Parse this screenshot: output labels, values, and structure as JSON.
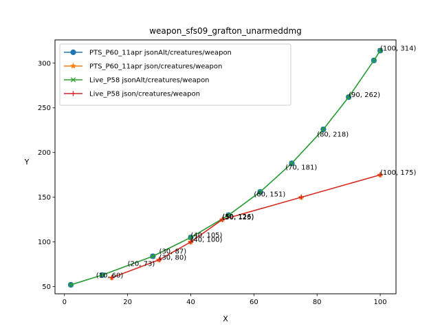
{
  "chart_data": {
    "type": "line",
    "title": "weapon_sfs09_grafton_unarmeddmg",
    "xlabel": "X",
    "ylabel": "Y",
    "xlim": [
      -3,
      105
    ],
    "ylim": [
      42,
      326
    ],
    "xticks": [
      0,
      20,
      40,
      60,
      80,
      100
    ],
    "yticks": [
      50,
      100,
      150,
      200,
      250,
      300
    ],
    "grid": false,
    "legend_position": "upper-left",
    "series": [
      {
        "name": "PTS_P60_11apr jsonAlt/creatures/weapon",
        "color": "#1f77b4",
        "marker": "circle",
        "x": [
          2,
          12,
          28,
          40,
          52,
          62,
          72,
          82,
          90,
          98,
          100
        ],
        "y": [
          52,
          63,
          84,
          105,
          130,
          156,
          188,
          226,
          262,
          303,
          314
        ]
      },
      {
        "name": "PTS_P60_11apr json/creatures/weapon",
        "color": "#ff7f0e",
        "marker": "star",
        "x": [
          15,
          30,
          40,
          50,
          75,
          100
        ],
        "y": [
          60,
          80,
          100,
          125,
          150,
          175
        ]
      },
      {
        "name": "Live_P58 jsonAlt/creatures/weapon",
        "color": "#2ca02c",
        "marker": "x",
        "x": [
          2,
          12,
          28,
          40,
          52,
          62,
          72,
          82,
          90,
          98,
          100
        ],
        "y": [
          52,
          63,
          84,
          105,
          130,
          156,
          188,
          226,
          262,
          303,
          314
        ]
      },
      {
        "name": "Live_P58 json/creatures/weapon",
        "color": "#d62728",
        "marker": "plus",
        "x": [
          15,
          30,
          40,
          50,
          75,
          100
        ],
        "y": [
          60,
          80,
          100,
          125,
          150,
          175
        ]
      }
    ],
    "annotations": [
      {
        "text": "(10, 60)",
        "x": 10,
        "y": 60
      },
      {
        "text": "(20, 73)",
        "x": 20,
        "y": 73
      },
      {
        "text": "(30, 87)",
        "x": 30,
        "y": 87
      },
      {
        "text": "(30, 80)",
        "x": 30,
        "y": 80
      },
      {
        "text": "(40, 105)",
        "x": 40,
        "y": 105
      },
      {
        "text": "(40, 100)",
        "x": 40,
        "y": 100
      },
      {
        "text": "(50, 126)",
        "x": 50,
        "y": 126
      },
      {
        "text": "(50, 125)",
        "x": 50,
        "y": 125
      },
      {
        "text": "(60, 151)",
        "x": 60,
        "y": 151
      },
      {
        "text": "(70, 181)",
        "x": 70,
        "y": 181
      },
      {
        "text": "(80, 218)",
        "x": 80,
        "y": 218
      },
      {
        "text": "(90, 262)",
        "x": 90,
        "y": 262
      },
      {
        "text": "(100, 314)",
        "x": 100,
        "y": 314
      },
      {
        "text": "(100, 175)",
        "x": 100,
        "y": 175
      }
    ]
  }
}
